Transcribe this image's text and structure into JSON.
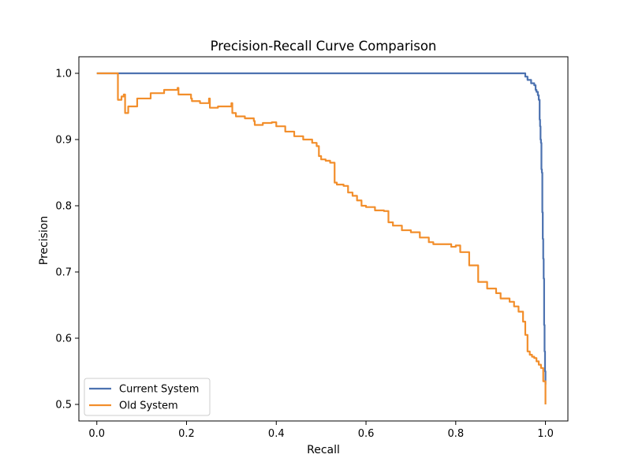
{
  "chart_data": {
    "type": "line",
    "title": "Precision-Recall Curve Comparison",
    "xlabel": "Recall",
    "ylabel": "Precision",
    "xlim": [
      -0.04,
      1.05
    ],
    "ylim": [
      0.475,
      1.025
    ],
    "xticks": [
      0.0,
      0.2,
      0.4,
      0.6,
      0.8,
      1.0
    ],
    "xtick_labels": [
      "0.0",
      "0.2",
      "0.4",
      "0.6",
      "0.8",
      "1.0"
    ],
    "yticks": [
      0.5,
      0.6,
      0.7,
      0.8,
      0.9,
      1.0
    ],
    "ytick_labels": [
      "0.5",
      "0.6",
      "0.7",
      "0.8",
      "0.9",
      "1.0"
    ],
    "grid": false,
    "legend_position": "lower-left",
    "series": [
      {
        "name": "Current System",
        "color": "#4c72b0",
        "x": [
          0.0,
          0.95,
          0.955,
          0.96,
          0.965,
          0.968,
          0.972,
          0.975,
          0.978,
          0.98,
          0.983,
          0.985,
          0.987,
          0.988,
          0.989,
          0.99,
          0.991,
          0.992,
          0.993,
          0.994,
          0.995,
          0.996,
          0.997,
          0.998,
          0.999,
          1.0
        ],
        "y": [
          1.0,
          1.0,
          0.995,
          0.99,
          0.99,
          0.985,
          0.985,
          0.982,
          0.975,
          0.972,
          0.967,
          0.96,
          0.93,
          0.92,
          0.9,
          0.895,
          0.855,
          0.85,
          0.79,
          0.75,
          0.72,
          0.69,
          0.62,
          0.58,
          0.55,
          0.53
        ]
      },
      {
        "name": "Old System",
        "color": "#f28e2b",
        "x": [
          0.0,
          0.045,
          0.047,
          0.055,
          0.06,
          0.063,
          0.07,
          0.09,
          0.12,
          0.15,
          0.18,
          0.182,
          0.2,
          0.21,
          0.212,
          0.23,
          0.25,
          0.252,
          0.27,
          0.3,
          0.302,
          0.31,
          0.33,
          0.35,
          0.352,
          0.37,
          0.39,
          0.4,
          0.42,
          0.44,
          0.46,
          0.48,
          0.49,
          0.495,
          0.5,
          0.51,
          0.52,
          0.53,
          0.535,
          0.55,
          0.56,
          0.57,
          0.58,
          0.59,
          0.6,
          0.62,
          0.64,
          0.65,
          0.66,
          0.68,
          0.7,
          0.72,
          0.74,
          0.75,
          0.77,
          0.79,
          0.8,
          0.81,
          0.83,
          0.85,
          0.87,
          0.89,
          0.9,
          0.92,
          0.93,
          0.94,
          0.95,
          0.955,
          0.96,
          0.965,
          0.97,
          0.975,
          0.98,
          0.985,
          0.99,
          0.995,
          1.0
        ],
        "y": [
          1.0,
          1.0,
          0.96,
          0.965,
          0.968,
          0.94,
          0.95,
          0.962,
          0.97,
          0.975,
          0.978,
          0.968,
          0.968,
          0.962,
          0.958,
          0.955,
          0.962,
          0.948,
          0.95,
          0.955,
          0.94,
          0.935,
          0.932,
          0.928,
          0.922,
          0.925,
          0.926,
          0.92,
          0.912,
          0.905,
          0.9,
          0.895,
          0.89,
          0.875,
          0.87,
          0.868,
          0.865,
          0.835,
          0.832,
          0.83,
          0.82,
          0.815,
          0.808,
          0.8,
          0.798,
          0.793,
          0.792,
          0.775,
          0.77,
          0.763,
          0.76,
          0.752,
          0.745,
          0.742,
          0.742,
          0.738,
          0.74,
          0.73,
          0.71,
          0.685,
          0.675,
          0.668,
          0.66,
          0.655,
          0.648,
          0.64,
          0.625,
          0.605,
          0.58,
          0.575,
          0.572,
          0.57,
          0.565,
          0.56,
          0.555,
          0.535,
          0.5
        ]
      }
    ]
  }
}
